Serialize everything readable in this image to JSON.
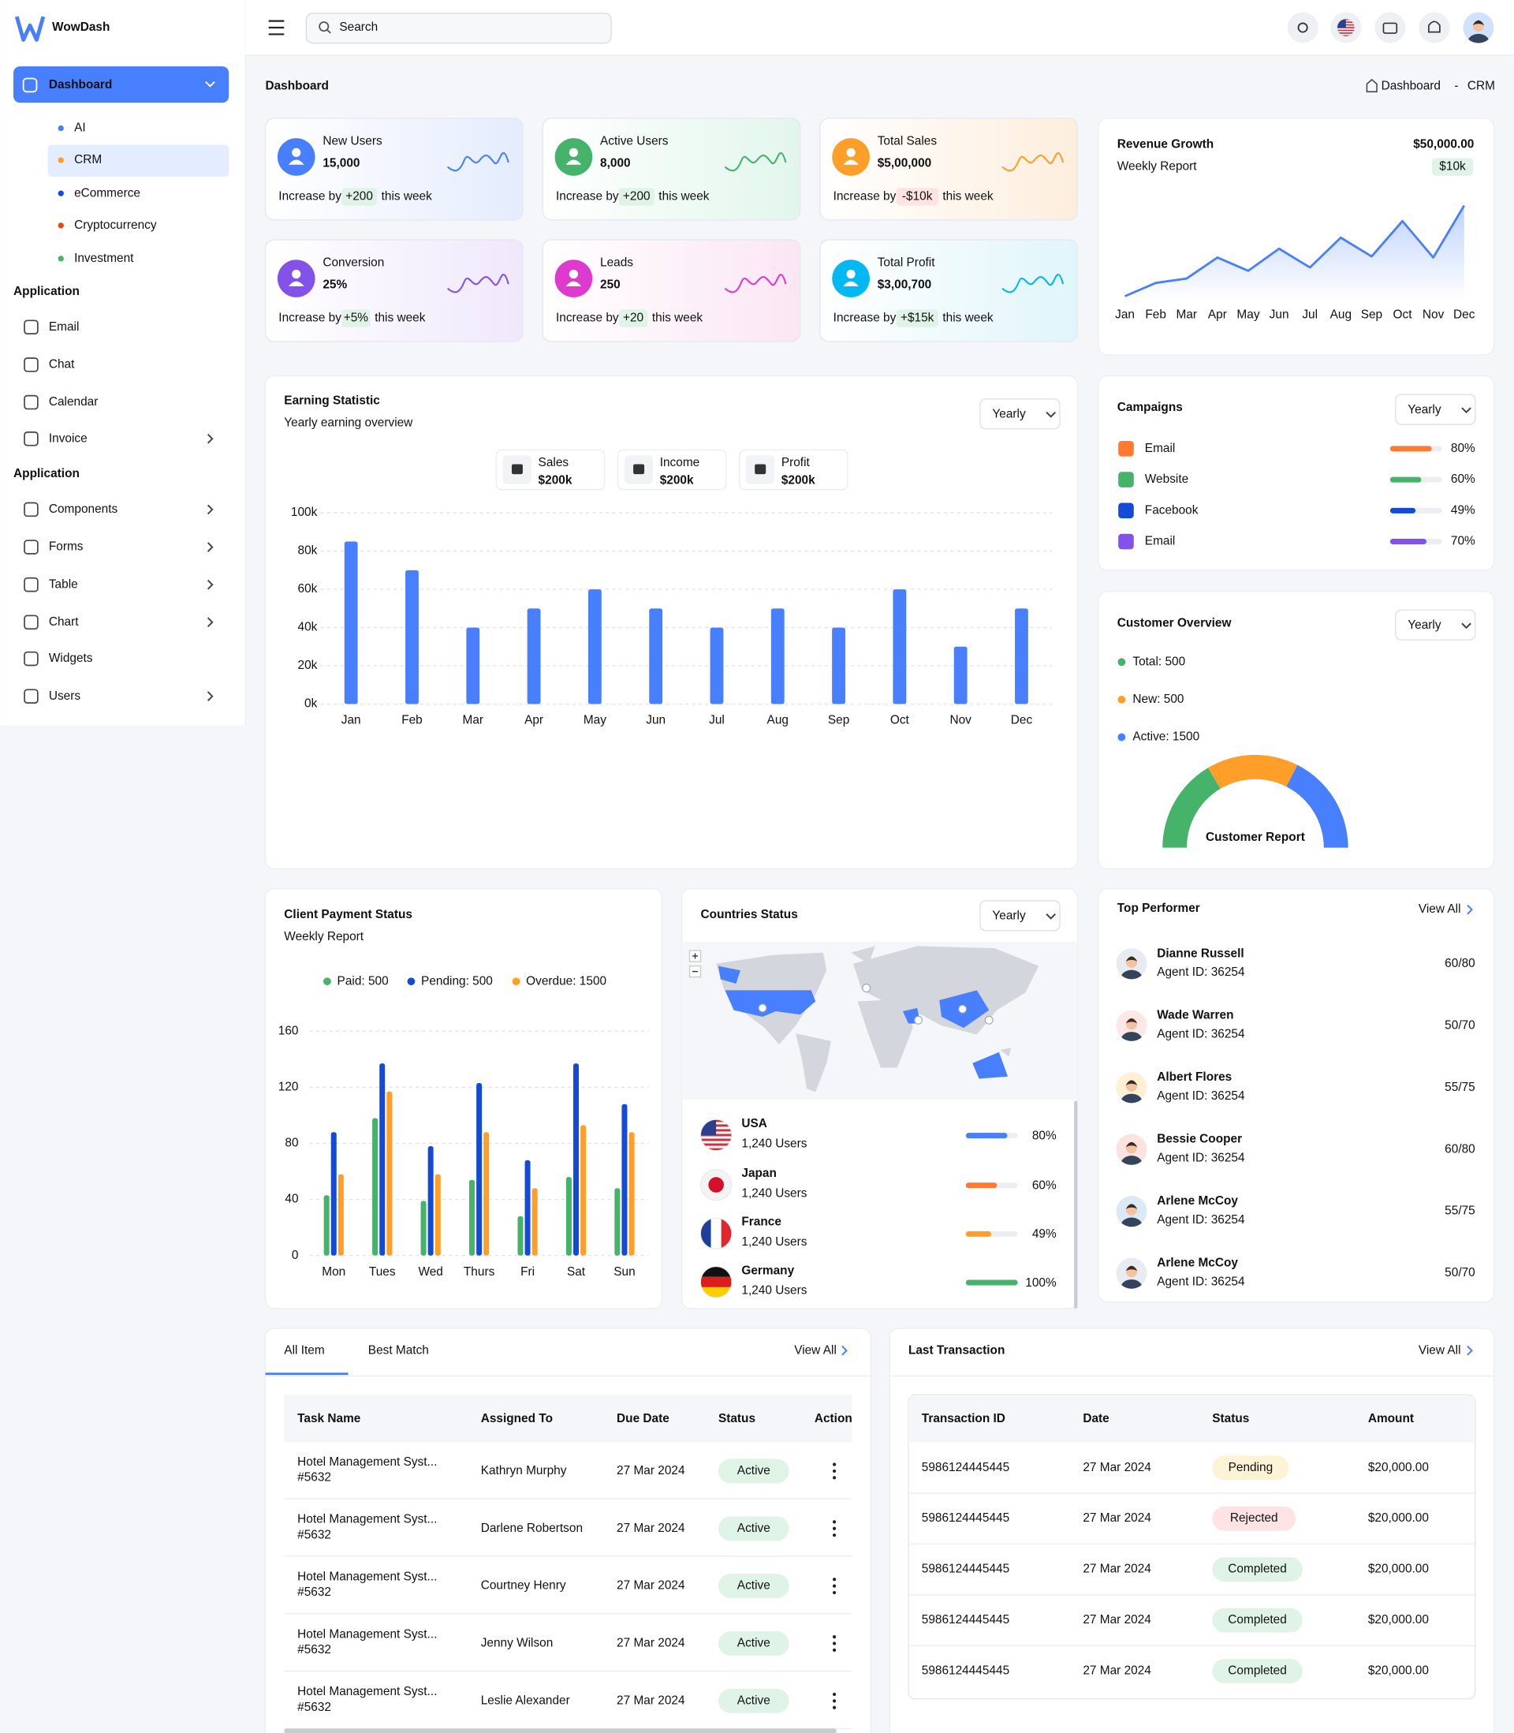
{
  "brand": "WowDash",
  "sidebar": {
    "active": "Dashboard",
    "submenu": [
      "AI",
      "CRM",
      "eCommerce",
      "Cryptocurrency",
      "Investment"
    ],
    "sections": [
      {
        "label": "Application",
        "items": [
          "Email",
          "Chat",
          "Calendar",
          "Invoice"
        ]
      },
      {
        "label": "Application",
        "items": [
          "Components",
          "Forms",
          "Table",
          "Chart",
          "Widgets",
          "Users"
        ]
      }
    ]
  },
  "header": {
    "search_placeholder": "Search"
  },
  "page": {
    "title": "Dashboard",
    "breadcrumb": [
      "Dashboard",
      "CRM"
    ],
    "breadcrumb_separator": "-"
  },
  "stats": [
    {
      "label": "New Users",
      "value": "15,000",
      "increase_by": "Increase by",
      "change": "+200",
      "period": "this week"
    },
    {
      "label": "Active Users",
      "value": "8,000",
      "increase_by": "Increase by",
      "change": "+200",
      "period": "this week"
    },
    {
      "label": "Total Sales",
      "value": "$5,00,000",
      "increase_by": "Increase by",
      "change": "-$10k",
      "period": "this week"
    },
    {
      "label": "Conversion",
      "value": "25%",
      "increase_by": "Increase by",
      "change": "+5%",
      "period": "this week"
    },
    {
      "label": "Leads",
      "value": "250",
      "increase_by": "Increase by",
      "change": "+20",
      "period": "this week"
    },
    {
      "label": "Total Profit",
      "value": "$3,00,700",
      "increase_by": "Increase by",
      "change": "+$15k",
      "period": "this week"
    }
  ],
  "revenue": {
    "title": "Revenue Growth",
    "subtitle": "Weekly Report",
    "total": "$50,000.00",
    "change": "$10k"
  },
  "earning": {
    "title": "Earning Statistic",
    "subtitle": "Yearly earning overview",
    "filter": "Yearly",
    "summary": [
      {
        "label": "Sales",
        "value": "$200k"
      },
      {
        "label": "Income",
        "value": "$200k"
      },
      {
        "label": "Profit",
        "value": "$200k"
      }
    ]
  },
  "campaigns": {
    "title": "Campaigns",
    "filter": "Yearly",
    "items": [
      {
        "name": "Email",
        "value": 80,
        "label": "80%",
        "color": "#ff7a2f"
      },
      {
        "name": "Website",
        "value": 60,
        "label": "60%",
        "color": "#45b369"
      },
      {
        "name": "Facebook",
        "value": 49,
        "label": "49%",
        "color": "#144bd6"
      },
      {
        "name": "Email",
        "value": 70,
        "label": "70%",
        "color": "#8252e9"
      }
    ]
  },
  "customer_overview": {
    "title": "Customer Overview",
    "filter": "Yearly"
  },
  "payment": {
    "title": "Client Payment Status",
    "subtitle": "Weekly Report"
  },
  "countries": {
    "title": "Countries Status",
    "filter": "Yearly",
    "items": [
      {
        "name": "USA",
        "users": "1,240 Users",
        "value": 80,
        "label": "80%",
        "color": "#487fff"
      },
      {
        "name": "Japan",
        "users": "1,240 Users",
        "value": 60,
        "label": "60%",
        "color": "#ff7a2f"
      },
      {
        "name": "France",
        "users": "1,240 Users",
        "value": 49,
        "label": "49%",
        "color": "#ff9f29"
      },
      {
        "name": "Germany",
        "users": "1,240 Users",
        "value": 100,
        "label": "100%",
        "color": "#45b369"
      }
    ]
  },
  "top_performer": {
    "title": "Top Performer",
    "view_all": "View All",
    "items": [
      {
        "name": "Dianne Russell",
        "agent": "Agent ID: 36254",
        "score": "60/80"
      },
      {
        "name": "Wade Warren",
        "agent": "Agent ID: 36254",
        "score": "50/70"
      },
      {
        "name": "Albert Flores",
        "agent": "Agent ID: 36254",
        "score": "55/75"
      },
      {
        "name": "Bessie Cooper",
        "agent": "Agent ID: 36254",
        "score": "60/80"
      },
      {
        "name": "Arlene McCoy",
        "agent": "Agent ID: 36254",
        "score": "55/75"
      },
      {
        "name": "Arlene McCoy",
        "agent": "Agent ID: 36254",
        "score": "50/70"
      }
    ]
  },
  "tasks": {
    "tabs": [
      "All Item",
      "Best Match"
    ],
    "view_all": "View All",
    "columns": [
      "Task Name",
      "Assigned To",
      "Due Date",
      "Status",
      "Action"
    ],
    "rows": [
      {
        "name": "Hotel Management Syst...",
        "id": "#5632",
        "assigned": "Kathryn Murphy",
        "due": "27 Mar 2024",
        "status": "Active"
      },
      {
        "name": "Hotel Management Syst...",
        "id": "#5632",
        "assigned": "Darlene Robertson",
        "due": "27 Mar 2024",
        "status": "Active"
      },
      {
        "name": "Hotel Management Syst...",
        "id": "#5632",
        "assigned": "Courtney Henry",
        "due": "27 Mar 2024",
        "status": "Active"
      },
      {
        "name": "Hotel Management Syst...",
        "id": "#5632",
        "assigned": "Jenny Wilson",
        "due": "27 Mar 2024",
        "status": "Active"
      },
      {
        "name": "Hotel Management Syst...",
        "id": "#5632",
        "assigned": "Leslie Alexander",
        "due": "27 Mar 2024",
        "status": "Active"
      }
    ]
  },
  "transactions": {
    "title": "Last Transaction",
    "view_all": "View All",
    "columns": [
      "Transaction ID",
      "Date",
      "Status",
      "Amount"
    ],
    "rows": [
      [
        "5986124445445",
        "27 Mar 2024",
        "Pending",
        "$20,000.00"
      ],
      [
        "5986124445445",
        "27 Mar 2024",
        "Rejected",
        "$20,000.00"
      ],
      [
        "5986124445445",
        "27 Mar 2024",
        "Completed",
        "$20,000.00"
      ],
      [
        "5986124445445",
        "27 Mar 2024",
        "Completed",
        "$20,000.00"
      ],
      [
        "5986124445445",
        "27 Mar 2024",
        "Completed",
        "$20,000.00"
      ]
    ]
  },
  "chart_data": [
    {
      "type": "line",
      "categories": [
        "Jan",
        "Feb",
        "Mar",
        "Apr",
        "May",
        "Jun",
        "Jul",
        "Aug",
        "Sep",
        "Oct",
        "Nov",
        "Dec"
      ],
      "values": [
        0,
        12,
        16,
        35,
        23,
        43,
        26,
        53,
        36,
        68,
        35,
        82
      ],
      "color": "#487fff"
    },
    {
      "type": "bar",
      "categories": [
        "Jan",
        "Feb",
        "Mar",
        "Apr",
        "May",
        "Jun",
        "Jul",
        "Aug",
        "Sep",
        "Oct",
        "Nov",
        "Dec"
      ],
      "values": [
        85000,
        70000,
        40000,
        50000,
        60000,
        50000,
        40000,
        50000,
        40000,
        60000,
        30000,
        50000
      ],
      "color": "#487fff",
      "ylim": [
        0,
        100000
      ],
      "yticks": [
        {
          "value": 0,
          "label": "0k"
        },
        {
          "value": 20000,
          "label": "20k"
        },
        {
          "value": 40000,
          "label": "40k"
        },
        {
          "value": 60000,
          "label": "60k"
        },
        {
          "value": 80000,
          "label": "80k"
        },
        {
          "value": 100000,
          "label": "100k"
        }
      ],
      "grid": true
    },
    {
      "type": "bar",
      "categories": [
        "Mon",
        "Tues",
        "Wed",
        "Thurs",
        "Fri",
        "Sat",
        "Sun"
      ],
      "series": [
        {
          "name": "Paid: 500",
          "color": "#45b369",
          "values": [
            43,
            98,
            39,
            54,
            28,
            56,
            48
          ]
        },
        {
          "name": "Pending: 500",
          "color": "#144bd6",
          "values": [
            88,
            137,
            78,
            123,
            68,
            137,
            108
          ]
        },
        {
          "name": "Overdue: 1500",
          "color": "#ff9f29",
          "values": [
            58,
            117,
            58,
            88,
            48,
            93,
            88
          ]
        }
      ],
      "ylim": [
        0,
        160
      ],
      "yticks": [
        0,
        40,
        80,
        120,
        160
      ],
      "grid": true
    },
    {
      "type": "gauge",
      "title": "Customer Report",
      "categories": [
        "Total: 500",
        "New: 500",
        "Active: 1500"
      ],
      "values": [
        33,
        32,
        35
      ],
      "colors": [
        "#45b369",
        "#ff9f29",
        "#487fff"
      ]
    }
  ]
}
